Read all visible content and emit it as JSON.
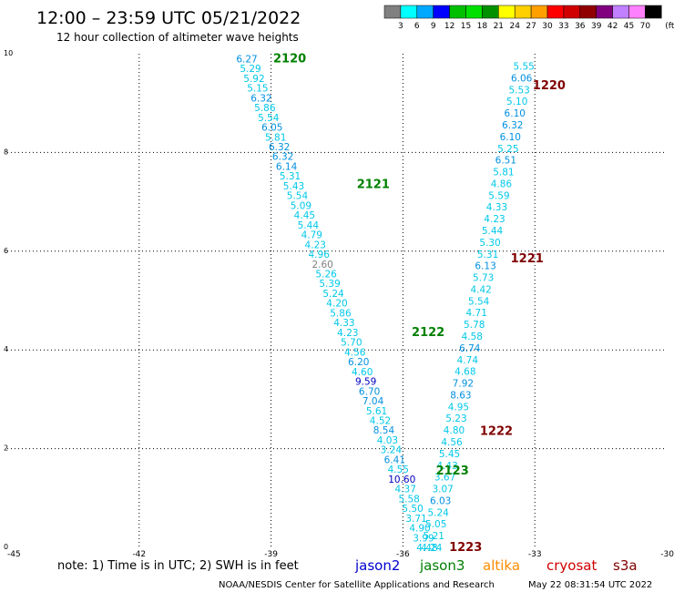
{
  "title": "12:00 – 23:59 UTC 05/21/2022",
  "subtitle": "12 hour collection of altimeter wave heights",
  "colorbar": {
    "labels": [
      "3",
      "6",
      "9",
      "12",
      "15",
      "18",
      "21",
      "24",
      "27",
      "30",
      "33",
      "36",
      "39",
      "42",
      "45",
      "70"
    ],
    "unit": "(ft)",
    "colors": [
      "#808080",
      "#00ffff",
      "#00a8ff",
      "#0000ff",
      "#00c000",
      "#00e000",
      "#009000",
      "#ffff00",
      "#ffd000",
      "#ffa000",
      "#ff0000",
      "#d00000",
      "#900000",
      "#800080",
      "#c080ff",
      "#ff80ff",
      "#000000"
    ]
  },
  "note": "note: 1) Time is in UTC; 2) SWH is in feet",
  "credit": "NOAA/NESDIS Center for Satellite Applications and Research",
  "timestamp": "May 22 08:31:54 UTC 2022",
  "satellites": [
    {
      "name": "jason2",
      "color": "#0000d0"
    },
    {
      "name": "jason3",
      "color": "#008000"
    },
    {
      "name": "altika",
      "color": "#ff8c00"
    },
    {
      "name": "cryosat",
      "color": "#d00000"
    },
    {
      "name": "s3a",
      "color": "#800000"
    }
  ],
  "chart_data": {
    "type": "scatter",
    "title": "12:00 – 23:59 UTC 05/21/2022",
    "xlim": [
      -45,
      -30
    ],
    "ylim": [
      0,
      10
    ],
    "x_ticks": [
      "-45",
      "-42",
      "-39",
      "-36",
      "-33",
      "-30"
    ],
    "y_ticks": [
      "0",
      "2",
      "4",
      "6",
      "8",
      "10"
    ],
    "grid": true,
    "tracks": [
      {
        "satellite": "jason3",
        "color": "#008000",
        "start": [
          -39.55,
          9.9
        ],
        "end": [
          -35.45,
          0.0
        ],
        "values": [
          "6.27",
          "5.29",
          "5.92",
          "5.15",
          "6.32",
          "5.86",
          "5.54",
          "6.05",
          "5.81",
          "6.32",
          "6.32",
          "6.14",
          "5.31",
          "5.43",
          "5.54",
          "5.09",
          "4.45",
          "5.44",
          "4.79",
          "4.23",
          "4.96",
          "2.60",
          "5.26",
          "5.39",
          "5.24",
          "4.20",
          "5.86",
          "4.33",
          "4.23",
          "5.70",
          "4.56",
          "6.20",
          "4.60",
          "9.59",
          "6.70",
          "7.04",
          "5.61",
          "4.52",
          "8.54",
          "4.03",
          "3.24",
          "6.41",
          "4.55",
          "10.60",
          "4.37",
          "5.58",
          "5.50",
          "3.71",
          "4.90",
          "3.99",
          "4.48"
        ],
        "passes": [
          {
            "label": "2120",
            "x": -38.95,
            "y": 9.9
          },
          {
            "label": "2121",
            "x": -37.05,
            "y": 7.35
          },
          {
            "label": "2122",
            "x": -35.8,
            "y": 4.35
          },
          {
            "label": "2123",
            "x": -35.25,
            "y": 1.55
          }
        ]
      },
      {
        "satellite": "s3a",
        "color": "#800000",
        "start": [
          -33.25,
          9.75
        ],
        "end": [
          -35.35,
          0.0
        ],
        "values": [
          "5.55",
          "6.06",
          "5.53",
          "5.10",
          "6.10",
          "6.32",
          "6.10",
          "5.25",
          "6.51",
          "5.81",
          "4.86",
          "5.59",
          "4.33",
          "4.23",
          "5.44",
          "5.30",
          "5.31",
          "6.13",
          "5.73",
          "4.42",
          "5.54",
          "4.71",
          "5.78",
          "4.58",
          "6.74",
          "4.74",
          "4.68",
          "7.92",
          "8.63",
          "4.95",
          "5.23",
          "4.80",
          "4.56",
          "5.45",
          "4.43",
          "3.67",
          "3.07",
          "6.03",
          "5.24",
          "5.05",
          "5.21",
          "4.24"
        ],
        "passes": [
          {
            "label": "1220",
            "x": -33.05,
            "y": 9.35
          },
          {
            "label": "1221",
            "x": -33.55,
            "y": 5.85
          },
          {
            "label": "1222",
            "x": -34.25,
            "y": 2.35
          },
          {
            "label": "1223",
            "x": -34.95,
            "y": 0.0
          }
        ]
      }
    ]
  }
}
